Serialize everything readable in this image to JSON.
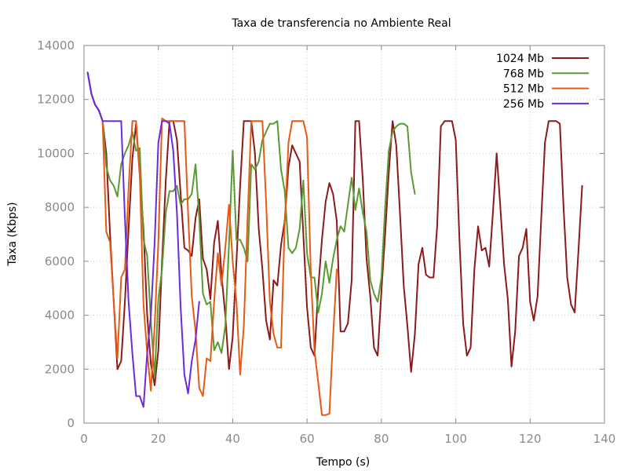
{
  "chart_data": {
    "type": "line",
    "title": "Taxa de transferencia no Ambiente Real",
    "xlabel": "Tempo (s)",
    "ylabel": "Taxa (Kbps)",
    "xlim": [
      0,
      140
    ],
    "ylim": [
      0,
      14000
    ],
    "x_ticks": [
      0,
      20,
      40,
      60,
      80,
      100,
      120,
      140
    ],
    "y_ticks": [
      0,
      2000,
      4000,
      6000,
      8000,
      10000,
      12000,
      14000
    ],
    "grid": true,
    "legend_position": "top-right",
    "series": [
      {
        "name": "1024 Mb",
        "color": "#8b1a1a",
        "points": [
          [
            1,
            13000
          ],
          [
            2,
            12200
          ],
          [
            3,
            11800
          ],
          [
            4,
            11600
          ],
          [
            5,
            11200
          ],
          [
            6,
            10000
          ],
          [
            7,
            7000
          ],
          [
            8,
            4500
          ],
          [
            9,
            2000
          ],
          [
            10,
            2300
          ],
          [
            11,
            4500
          ],
          [
            12,
            7200
          ],
          [
            13,
            9800
          ],
          [
            14,
            11100
          ],
          [
            15,
            9200
          ],
          [
            16,
            7200
          ],
          [
            17,
            4000
          ],
          [
            18,
            2200
          ],
          [
            19,
            1400
          ],
          [
            20,
            2700
          ],
          [
            21,
            6000
          ],
          [
            22,
            9000
          ],
          [
            23,
            11200
          ],
          [
            24,
            11200
          ],
          [
            25,
            10500
          ],
          [
            26,
            8500
          ],
          [
            27,
            6500
          ],
          [
            28,
            6400
          ],
          [
            29,
            6200
          ],
          [
            30,
            7600
          ],
          [
            31,
            8300
          ],
          [
            32,
            6100
          ],
          [
            33,
            5700
          ],
          [
            34,
            4600
          ],
          [
            35,
            6700
          ],
          [
            36,
            7500
          ],
          [
            37,
            5500
          ],
          [
            38,
            4000
          ],
          [
            39,
            2000
          ],
          [
            40,
            3200
          ],
          [
            41,
            6000
          ],
          [
            42,
            8800
          ],
          [
            43,
            11200
          ],
          [
            44,
            11200
          ],
          [
            45,
            11200
          ],
          [
            46,
            10000
          ],
          [
            47,
            7200
          ],
          [
            48,
            5700
          ],
          [
            49,
            3800
          ],
          [
            50,
            3100
          ],
          [
            51,
            5300
          ],
          [
            52,
            5100
          ],
          [
            53,
            6600
          ],
          [
            54,
            7500
          ],
          [
            55,
            9500
          ],
          [
            56,
            10300
          ],
          [
            57,
            10000
          ],
          [
            58,
            9700
          ],
          [
            59,
            7000
          ],
          [
            60,
            4300
          ],
          [
            61,
            2800
          ],
          [
            62,
            2500
          ],
          [
            63,
            5000
          ],
          [
            64,
            6800
          ],
          [
            65,
            8200
          ],
          [
            66,
            8900
          ],
          [
            67,
            8500
          ],
          [
            68,
            7500
          ],
          [
            69,
            3400
          ],
          [
            70,
            3400
          ],
          [
            71,
            3700
          ],
          [
            72,
            5300
          ],
          [
            73,
            11200
          ],
          [
            74,
            11200
          ],
          [
            75,
            9000
          ],
          [
            76,
            6100
          ],
          [
            77,
            4700
          ],
          [
            78,
            2800
          ],
          [
            79,
            2500
          ],
          [
            80,
            4900
          ],
          [
            81,
            7000
          ],
          [
            82,
            9300
          ],
          [
            83,
            11200
          ],
          [
            84,
            10300
          ],
          [
            85,
            7800
          ],
          [
            86,
            5100
          ],
          [
            87,
            3600
          ],
          [
            88,
            1900
          ],
          [
            89,
            3300
          ],
          [
            90,
            5900
          ],
          [
            91,
            6500
          ],
          [
            92,
            5500
          ],
          [
            93,
            5400
          ],
          [
            94,
            5400
          ],
          [
            95,
            7300
          ],
          [
            96,
            11000
          ],
          [
            97,
            11200
          ],
          [
            98,
            11200
          ],
          [
            99,
            11200
          ],
          [
            100,
            10500
          ],
          [
            101,
            6800
          ],
          [
            102,
            3700
          ],
          [
            103,
            2500
          ],
          [
            104,
            2800
          ],
          [
            105,
            5700
          ],
          [
            106,
            7300
          ],
          [
            107,
            6400
          ],
          [
            108,
            6500
          ],
          [
            109,
            5800
          ],
          [
            110,
            7800
          ],
          [
            111,
            10000
          ],
          [
            112,
            8000
          ],
          [
            113,
            5900
          ],
          [
            114,
            4600
          ],
          [
            115,
            2100
          ],
          [
            116,
            3400
          ],
          [
            117,
            6200
          ],
          [
            118,
            6500
          ],
          [
            119,
            7200
          ],
          [
            120,
            4500
          ],
          [
            121,
            3800
          ],
          [
            122,
            4700
          ],
          [
            123,
            7600
          ],
          [
            124,
            10400
          ],
          [
            125,
            11200
          ],
          [
            126,
            11200
          ],
          [
            127,
            11200
          ],
          [
            128,
            11100
          ],
          [
            129,
            8000
          ],
          [
            130,
            5400
          ],
          [
            131,
            4400
          ],
          [
            132,
            4100
          ],
          [
            133,
            6400
          ],
          [
            134,
            8800
          ]
        ]
      },
      {
        "name": "768 Mb",
        "color": "#5a9a32",
        "points": [
          [
            1,
            13000
          ],
          [
            2,
            12200
          ],
          [
            3,
            11800
          ],
          [
            4,
            11600
          ],
          [
            5,
            11200
          ],
          [
            6,
            9500
          ],
          [
            7,
            9000
          ],
          [
            8,
            8800
          ],
          [
            9,
            8400
          ],
          [
            10,
            9600
          ],
          [
            11,
            10000
          ],
          [
            12,
            10300
          ],
          [
            13,
            10800
          ],
          [
            14,
            10100
          ],
          [
            15,
            10200
          ],
          [
            16,
            6800
          ],
          [
            17,
            6200
          ],
          [
            18,
            3800
          ],
          [
            19,
            1700
          ],
          [
            20,
            4600
          ],
          [
            21,
            5700
          ],
          [
            22,
            7800
          ],
          [
            23,
            8600
          ],
          [
            24,
            8600
          ],
          [
            25,
            8800
          ],
          [
            26,
            8100
          ],
          [
            27,
            8300
          ],
          [
            28,
            8300
          ],
          [
            29,
            8500
          ],
          [
            30,
            9600
          ],
          [
            31,
            7600
          ],
          [
            32,
            4800
          ],
          [
            33,
            4400
          ],
          [
            34,
            4500
          ],
          [
            35,
            2700
          ],
          [
            36,
            3000
          ],
          [
            37,
            2600
          ],
          [
            38,
            3600
          ],
          [
            39,
            6600
          ],
          [
            40,
            10100
          ],
          [
            41,
            6800
          ],
          [
            42,
            6800
          ],
          [
            43,
            6500
          ],
          [
            44,
            6000
          ],
          [
            45,
            9600
          ],
          [
            46,
            9400
          ],
          [
            47,
            9700
          ],
          [
            48,
            10500
          ],
          [
            49,
            10800
          ],
          [
            50,
            11100
          ],
          [
            51,
            11100
          ],
          [
            52,
            11200
          ],
          [
            53,
            9400
          ],
          [
            54,
            8600
          ],
          [
            55,
            6500
          ],
          [
            56,
            6300
          ],
          [
            57,
            6500
          ],
          [
            58,
            7200
          ],
          [
            59,
            9000
          ],
          [
            60,
            6300
          ],
          [
            61,
            5400
          ],
          [
            62,
            5400
          ],
          [
            63,
            4100
          ],
          [
            64,
            4800
          ],
          [
            65,
            6000
          ],
          [
            66,
            5200
          ],
          [
            67,
            6100
          ],
          [
            68,
            6800
          ],
          [
            69,
            7300
          ],
          [
            70,
            7100
          ],
          [
            71,
            8100
          ],
          [
            72,
            9100
          ],
          [
            73,
            7900
          ],
          [
            74,
            8700
          ],
          [
            75,
            7800
          ],
          [
            76,
            7100
          ],
          [
            77,
            5300
          ],
          [
            78,
            4800
          ],
          [
            79,
            4500
          ],
          [
            80,
            5400
          ],
          [
            81,
            8000
          ],
          [
            82,
            10100
          ],
          [
            83,
            10800
          ],
          [
            84,
            11000
          ],
          [
            85,
            11100
          ],
          [
            86,
            11100
          ],
          [
            87,
            11000
          ],
          [
            88,
            9300
          ],
          [
            89,
            8500
          ]
        ]
      },
      {
        "name": "512 Mb",
        "color": "#e65a14",
        "points": [
          [
            1,
            13000
          ],
          [
            2,
            12200
          ],
          [
            3,
            11800
          ],
          [
            4,
            11600
          ],
          [
            5,
            11200
          ],
          [
            6,
            7100
          ],
          [
            7,
            6700
          ],
          [
            8,
            4500
          ],
          [
            9,
            2400
          ],
          [
            10,
            5400
          ],
          [
            11,
            5700
          ],
          [
            12,
            8700
          ],
          [
            13,
            11200
          ],
          [
            14,
            11200
          ],
          [
            15,
            9300
          ],
          [
            16,
            4400
          ],
          [
            17,
            2600
          ],
          [
            18,
            1200
          ],
          [
            19,
            3600
          ],
          [
            20,
            6700
          ],
          [
            21,
            11300
          ],
          [
            22,
            11200
          ],
          [
            23,
            11200
          ],
          [
            24,
            11200
          ],
          [
            25,
            11200
          ],
          [
            26,
            11200
          ],
          [
            27,
            11200
          ],
          [
            28,
            7800
          ],
          [
            29,
            4700
          ],
          [
            30,
            3400
          ],
          [
            31,
            1300
          ],
          [
            32,
            1000
          ],
          [
            33,
            2400
          ],
          [
            34,
            2300
          ],
          [
            35,
            4500
          ],
          [
            36,
            6300
          ],
          [
            37,
            5100
          ],
          [
            38,
            6500
          ],
          [
            39,
            8100
          ],
          [
            40,
            6000
          ],
          [
            41,
            4500
          ],
          [
            42,
            1800
          ],
          [
            43,
            3600
          ],
          [
            44,
            7600
          ],
          [
            45,
            11200
          ],
          [
            46,
            11200
          ],
          [
            47,
            11200
          ],
          [
            48,
            11200
          ],
          [
            49,
            8200
          ],
          [
            50,
            4500
          ],
          [
            51,
            3300
          ],
          [
            52,
            2800
          ],
          [
            53,
            2800
          ],
          [
            54,
            7400
          ],
          [
            55,
            10400
          ],
          [
            56,
            11200
          ],
          [
            57,
            11200
          ],
          [
            58,
            11200
          ],
          [
            59,
            11200
          ],
          [
            60,
            10600
          ],
          [
            61,
            5600
          ],
          [
            62,
            2700
          ],
          [
            63,
            1500
          ],
          [
            64,
            300
          ],
          [
            65,
            300
          ],
          [
            66,
            350
          ],
          [
            67,
            3200
          ],
          [
            68,
            5700
          ]
        ]
      },
      {
        "name": "256 Mb",
        "color": "#6a2be0",
        "points": [
          [
            1,
            13000
          ],
          [
            2,
            12200
          ],
          [
            3,
            11800
          ],
          [
            4,
            11600
          ],
          [
            5,
            11200
          ],
          [
            6,
            11200
          ],
          [
            7,
            11200
          ],
          [
            8,
            11200
          ],
          [
            9,
            11200
          ],
          [
            10,
            11200
          ],
          [
            11,
            7600
          ],
          [
            12,
            4500
          ],
          [
            13,
            2600
          ],
          [
            14,
            1000
          ],
          [
            15,
            1000
          ],
          [
            16,
            600
          ],
          [
            17,
            2600
          ],
          [
            18,
            4000
          ],
          [
            19,
            6700
          ],
          [
            20,
            10400
          ],
          [
            21,
            11200
          ],
          [
            22,
            11200
          ],
          [
            23,
            11100
          ],
          [
            24,
            10100
          ],
          [
            25,
            7800
          ],
          [
            26,
            4300
          ],
          [
            27,
            1800
          ],
          [
            28,
            1100
          ],
          [
            29,
            2300
          ],
          [
            30,
            3100
          ],
          [
            31,
            4500
          ]
        ]
      }
    ]
  }
}
